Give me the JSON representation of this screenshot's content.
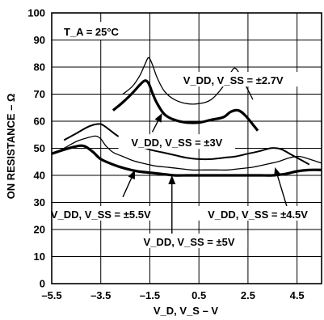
{
  "chart_data": {
    "type": "line",
    "xlabel": "V_D, V_S – V",
    "ylabel": "ON RESISTANCE – Ω",
    "xlim": [
      -5.5,
      5.5
    ],
    "ylim": [
      0,
      100
    ],
    "xticks": [
      -5.5,
      -3.5,
      -1.5,
      0.5,
      2.5,
      4.5
    ],
    "yticks": [
      0,
      10,
      20,
      30,
      40,
      50,
      60,
      70,
      80,
      90,
      100
    ],
    "grid": true,
    "annotation": "T_A = 25°C",
    "series": [
      {
        "name": "V_DD, V_SS = ±2.7V",
        "width": "thin",
        "x": [
          -2.6,
          -2.2,
          -1.9,
          -1.7,
          -1.55,
          -1.4,
          -1.2,
          -0.9,
          -0.5,
          0.0,
          0.5,
          1.0,
          1.5,
          1.8,
          2.0,
          2.3,
          2.7
        ],
        "y": [
          70,
          73,
          77,
          81,
          83.5,
          81,
          76,
          71,
          68,
          66.5,
          66.5,
          68,
          73,
          78,
          79.5,
          75,
          68
        ]
      },
      {
        "name": "V_DD, V_SS = ±3V",
        "width": "thick",
        "x": [
          -3.0,
          -2.6,
          -2.2,
          -1.9,
          -1.7,
          -1.55,
          -1.4,
          -1.2,
          -0.9,
          -0.5,
          0.0,
          0.5,
          1.0,
          1.5,
          1.8,
          2.1,
          2.4,
          2.9
        ],
        "y": [
          64,
          67,
          70.5,
          73.5,
          75,
          74,
          70.5,
          66.5,
          62.5,
          60.5,
          59.5,
          59.5,
          60.5,
          61.5,
          63.5,
          64,
          62,
          56.5
        ]
      },
      {
        "name": "V_DD, V_SS = ±4.5V",
        "width": "medium",
        "x": [
          -5.0,
          -4.5,
          -4.0,
          -3.6,
          -3.4,
          -3.1,
          -2.8,
          -2.4,
          -2.0,
          -1.5,
          -1.0,
          -0.5,
          0.0,
          0.5,
          1.0,
          1.5,
          2.0,
          2.5,
          3.0,
          3.4,
          3.7,
          3.9,
          4.2,
          4.6,
          5.0
        ],
        "y": [
          53,
          55.5,
          58,
          59,
          58.5,
          56.5,
          54.5,
          52.5,
          51,
          49.5,
          48.5,
          47.5,
          46.5,
          46,
          46,
          46.5,
          47,
          48,
          49,
          50,
          50,
          49.5,
          48,
          46,
          44
        ]
      },
      {
        "name": "V_DD, V_SS = ±5V",
        "width": "thin",
        "x": [
          -5.5,
          -5.0,
          -4.5,
          -4.0,
          -3.7,
          -3.5,
          -3.3,
          -3.0,
          -2.6,
          -2.2,
          -1.8,
          -1.3,
          -0.8,
          -0.3,
          0.2,
          0.7,
          1.2,
          1.7,
          2.2,
          2.7,
          3.2,
          3.7,
          4.2,
          4.6,
          5.0,
          5.5
        ],
        "y": [
          48,
          50,
          52.5,
          54,
          54.5,
          53.5,
          51,
          48.5,
          47,
          45.5,
          44.5,
          43.5,
          43,
          42.5,
          42,
          42,
          42,
          42,
          42.5,
          43,
          44,
          45,
          46.5,
          47,
          46,
          44.5
        ]
      },
      {
        "name": "V_DD, V_SS = ±5.5V",
        "width": "thick",
        "x": [
          -5.5,
          -5.0,
          -4.6,
          -4.3,
          -4.1,
          -3.8,
          -3.5,
          -3.0,
          -2.5,
          -2.0,
          -1.5,
          -1.0,
          -0.5,
          0.0,
          0.5,
          1.0,
          1.5,
          2.0,
          2.5,
          3.0,
          3.5,
          4.0,
          4.5,
          5.0,
          5.5
        ],
        "y": [
          48,
          49.5,
          50.5,
          51,
          50.5,
          48.5,
          46,
          44,
          42.5,
          41.5,
          41,
          40.5,
          40,
          40,
          40,
          40,
          40,
          40,
          40,
          40,
          40,
          40.5,
          41.5,
          42,
          42
        ]
      }
    ],
    "annotations": [
      {
        "name": "V_DD, V_SS = ±2.7V",
        "text_x": 1.9,
        "text_y": 74.6,
        "anchor": "middle",
        "line": [
          1.2,
          74.5,
          0.5,
          74.5
        ],
        "arrow": [
          1.9,
          74.5,
          2.6,
          74.5
        ]
      },
      {
        "name": "V_DD, V_SS = ±3V",
        "text_x": -0.4,
        "text_y": 51.6,
        "anchor": "middle",
        "arrow": [
          -1.4,
          56,
          -1.0,
          63
        ]
      },
      {
        "name": "V_DD, V_SS = ±4.5V",
        "text_x": 2.9,
        "text_y": 25.1,
        "anchor": "middle",
        "arrow": [
          4.1,
          28,
          3.6,
          43
        ]
      },
      {
        "name": "V_DD, V_SS = ±5V",
        "text_x": 0.1,
        "text_y": 14.9,
        "anchor": "middle",
        "line": [
          -1.3,
          15,
          -0.8,
          15
        ],
        "arrow": [
          1.0,
          15,
          1.2,
          15
        ],
        "arrow2": [
          -0.6,
          18,
          -0.6,
          40
        ]
      },
      {
        "name": "V_DD, V_SS = ±5.5V",
        "text_x": -3.5,
        "text_y": 25.1,
        "anchor": "middle",
        "arrow": [
          -2.6,
          32,
          -2.1,
          42
        ]
      }
    ]
  }
}
